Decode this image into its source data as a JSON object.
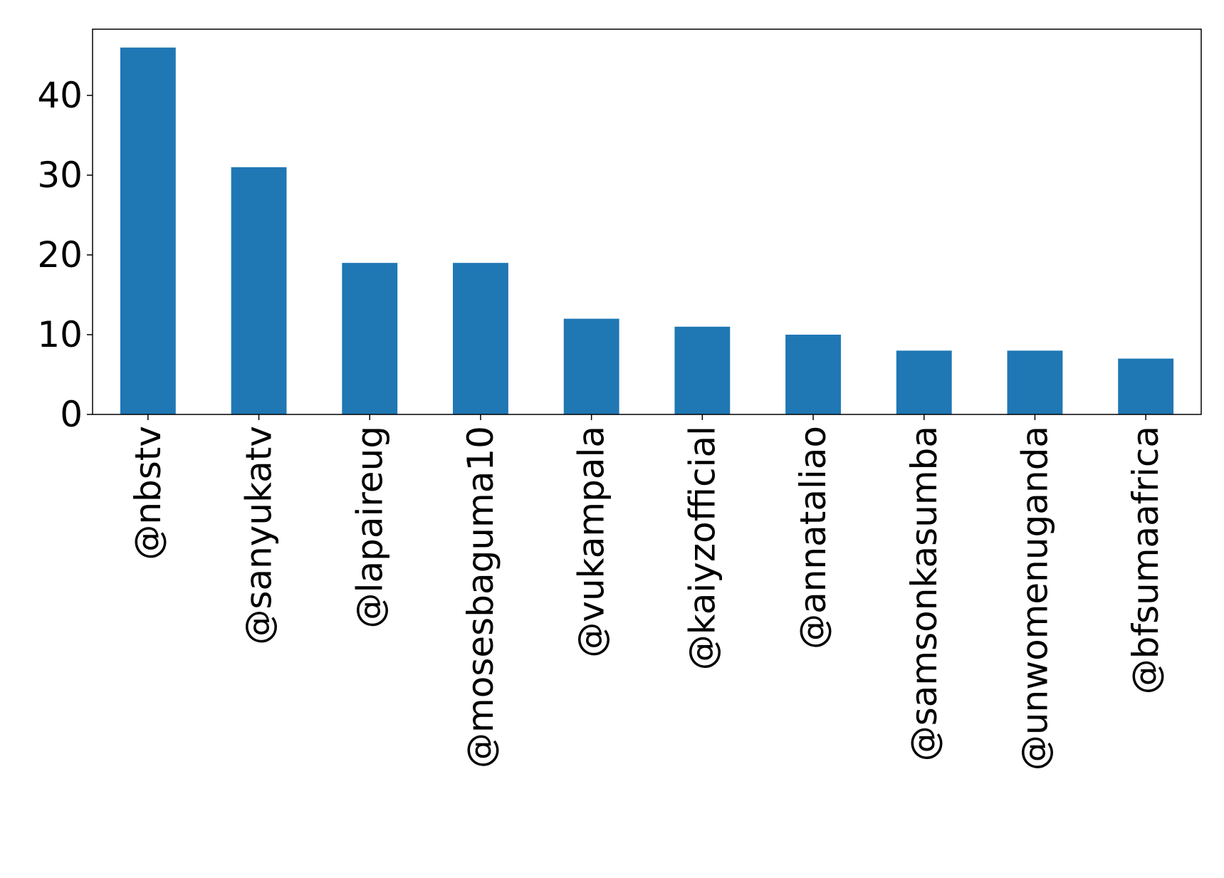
{
  "chart_data": {
    "type": "bar",
    "categories": [
      "@nbstv",
      "@sanyukatv",
      "@lapaireug",
      "@mosesbaguma10",
      "@vukampala",
      "@kaiyzofficial",
      "@annataliao",
      "@samsonkasumba",
      "@unwomenuganda",
      "@bfsumaafrica"
    ],
    "values": [
      46,
      31,
      19,
      19,
      12,
      11,
      10,
      8,
      8,
      7
    ],
    "yticks": [
      0,
      10,
      20,
      30,
      40
    ],
    "ylim": [
      0,
      48.3
    ],
    "title": "",
    "xlabel": "",
    "ylabel": "",
    "bar_color": "#1f77b4",
    "grid": false,
    "legend": false
  }
}
